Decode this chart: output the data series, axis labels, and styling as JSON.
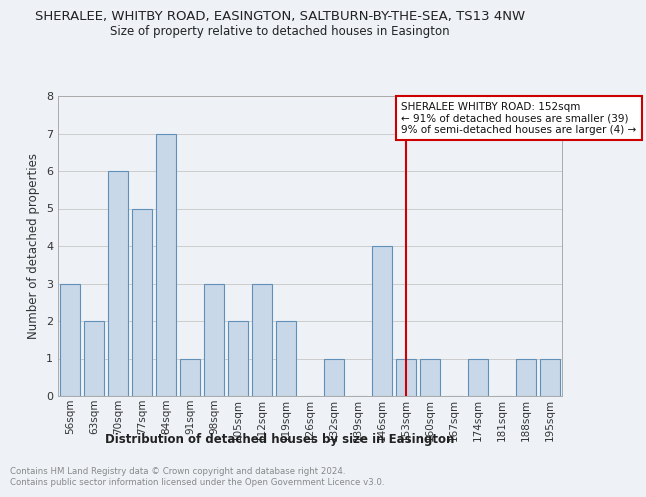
{
  "title": "SHERALEE, WHITBY ROAD, EASINGTON, SALTBURN-BY-THE-SEA, TS13 4NW",
  "subtitle": "Size of property relative to detached houses in Easington",
  "xlabel": "Distribution of detached houses by size in Easington",
  "ylabel": "Number of detached properties",
  "categories": [
    "56sqm",
    "63sqm",
    "70sqm",
    "77sqm",
    "84sqm",
    "91sqm",
    "98sqm",
    "105sqm",
    "112sqm",
    "119sqm",
    "126sqm",
    "132sqm",
    "139sqm",
    "146sqm",
    "153sqm",
    "160sqm",
    "167sqm",
    "174sqm",
    "181sqm",
    "188sqm",
    "195sqm"
  ],
  "values": [
    3,
    2,
    6,
    5,
    7,
    1,
    3,
    2,
    3,
    2,
    0,
    1,
    0,
    4,
    1,
    1,
    0,
    1,
    0,
    1,
    1
  ],
  "bar_color": "#c8d8e8",
  "bar_edge_color": "#6090b8",
  "grid_color": "#cccccc",
  "vline_color": "#cc0000",
  "vline_category": "153sqm",
  "annotation_title": "SHERALEE WHITBY ROAD: 152sqm",
  "annotation_line1": "← 91% of detached houses are smaller (39)",
  "annotation_line2": "9% of semi-detached houses are larger (4) →",
  "annotation_box_color": "#ffffff",
  "annotation_box_edge": "#cc0000",
  "footer1": "Contains HM Land Registry data © Crown copyright and database right 2024.",
  "footer2": "Contains public sector information licensed under the Open Government Licence v3.0.",
  "ylim": [
    0,
    8
  ],
  "background_color": "#eef2f7"
}
